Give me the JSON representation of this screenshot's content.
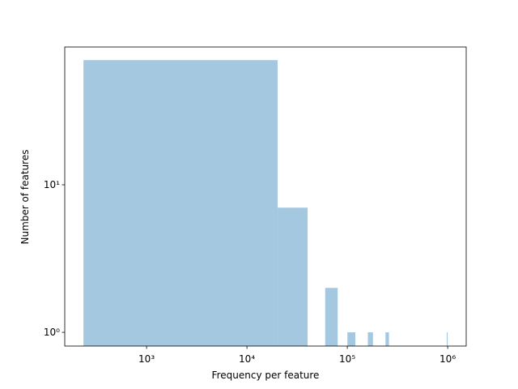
{
  "chart_data": {
    "type": "histogram",
    "xlabel": "Frequency per feature",
    "ylabel": "Number of features",
    "bins": [
      235,
      20230,
      40226,
      60221,
      80216,
      100212,
      120207,
      140202,
      160197,
      180193,
      200188,
      220183,
      240179,
      260174,
      280169,
      300165,
      320160,
      340155,
      360150,
      380146,
      400141,
      420136,
      440132,
      460127,
      480122,
      500118,
      520113,
      540108,
      560103,
      580099,
      600094,
      620089,
      640085,
      660080,
      680075,
      700071,
      720066,
      740061,
      760056,
      780052,
      800047,
      820042,
      840038,
      860033,
      880028,
      900024,
      920019,
      940014,
      960009,
      980005,
      1000000
    ],
    "values": [
      70,
      7,
      0,
      2,
      0,
      1,
      0,
      0,
      1,
      0,
      0,
      0,
      1,
      0,
      0,
      0,
      0,
      0,
      0,
      0,
      0,
      0,
      0,
      0,
      0,
      0,
      0,
      0,
      0,
      0,
      0,
      0,
      0,
      0,
      0,
      0,
      0,
      0,
      0,
      0,
      0,
      0,
      0,
      0,
      0,
      0,
      0,
      0,
      0,
      1
    ],
    "color": "#a5c8e1",
    "xscale": "log",
    "yscale": "log",
    "xlim": [
      153,
      1530000
    ],
    "ylim": [
      0.807,
      85.9
    ],
    "xticks": [
      {
        "value": 1000,
        "label": "10³"
      },
      {
        "value": 10000,
        "label": "10⁴"
      },
      {
        "value": 100000,
        "label": "10⁵"
      },
      {
        "value": 1000000,
        "label": "10⁶"
      }
    ],
    "yticks": [
      {
        "value": 1,
        "label": "10⁰"
      },
      {
        "value": 10,
        "label": "10¹"
      }
    ]
  }
}
